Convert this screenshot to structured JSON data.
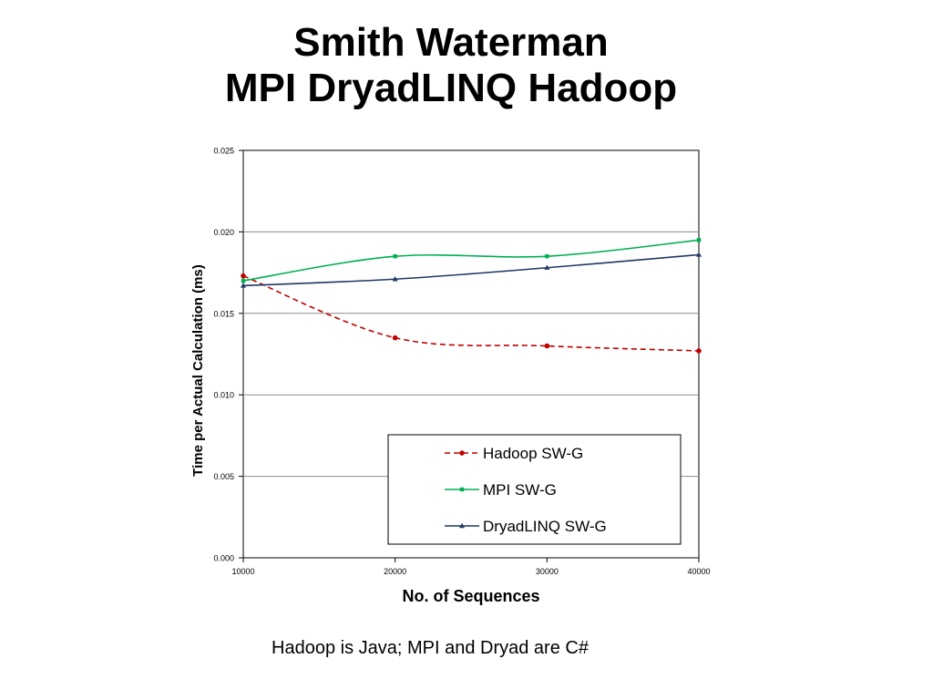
{
  "slide": {
    "title_line1": "Smith Waterman",
    "title_line2": "MPI DryadLINQ Hadoop",
    "footnote": "Hadoop is Java; MPI and Dryad are C#"
  },
  "chart_data": {
    "type": "line",
    "title": "",
    "xlabel": "No. of Sequences",
    "ylabel": "Time  per Actual Calculation (ms)",
    "x": [
      10000,
      20000,
      30000,
      40000
    ],
    "x_tick_labels": [
      "10000",
      "20000",
      "30000",
      "40000"
    ],
    "y_tick_labels": [
      "0.000",
      "0.005",
      "0.010",
      "0.015",
      "0.020",
      "0.025"
    ],
    "ylim": [
      0,
      0.025
    ],
    "grid": "horizontal",
    "legend_position": "bottom-right",
    "series": [
      {
        "name": "Hadoop SW-G",
        "values": [
          0.0173,
          0.0135,
          0.013,
          0.0127
        ],
        "color": "#c00000",
        "dash": "dashed",
        "marker": "circle"
      },
      {
        "name": "MPI SW-G",
        "values": [
          0.017,
          0.0185,
          0.0185,
          0.0195
        ],
        "color": "#00b050",
        "dash": "solid",
        "marker": "square"
      },
      {
        "name": "DryadLINQ SW-G",
        "values": [
          0.0167,
          0.0171,
          0.0178,
          0.0186
        ],
        "color": "#1f3864",
        "dash": "solid",
        "marker": "triangle"
      }
    ]
  }
}
